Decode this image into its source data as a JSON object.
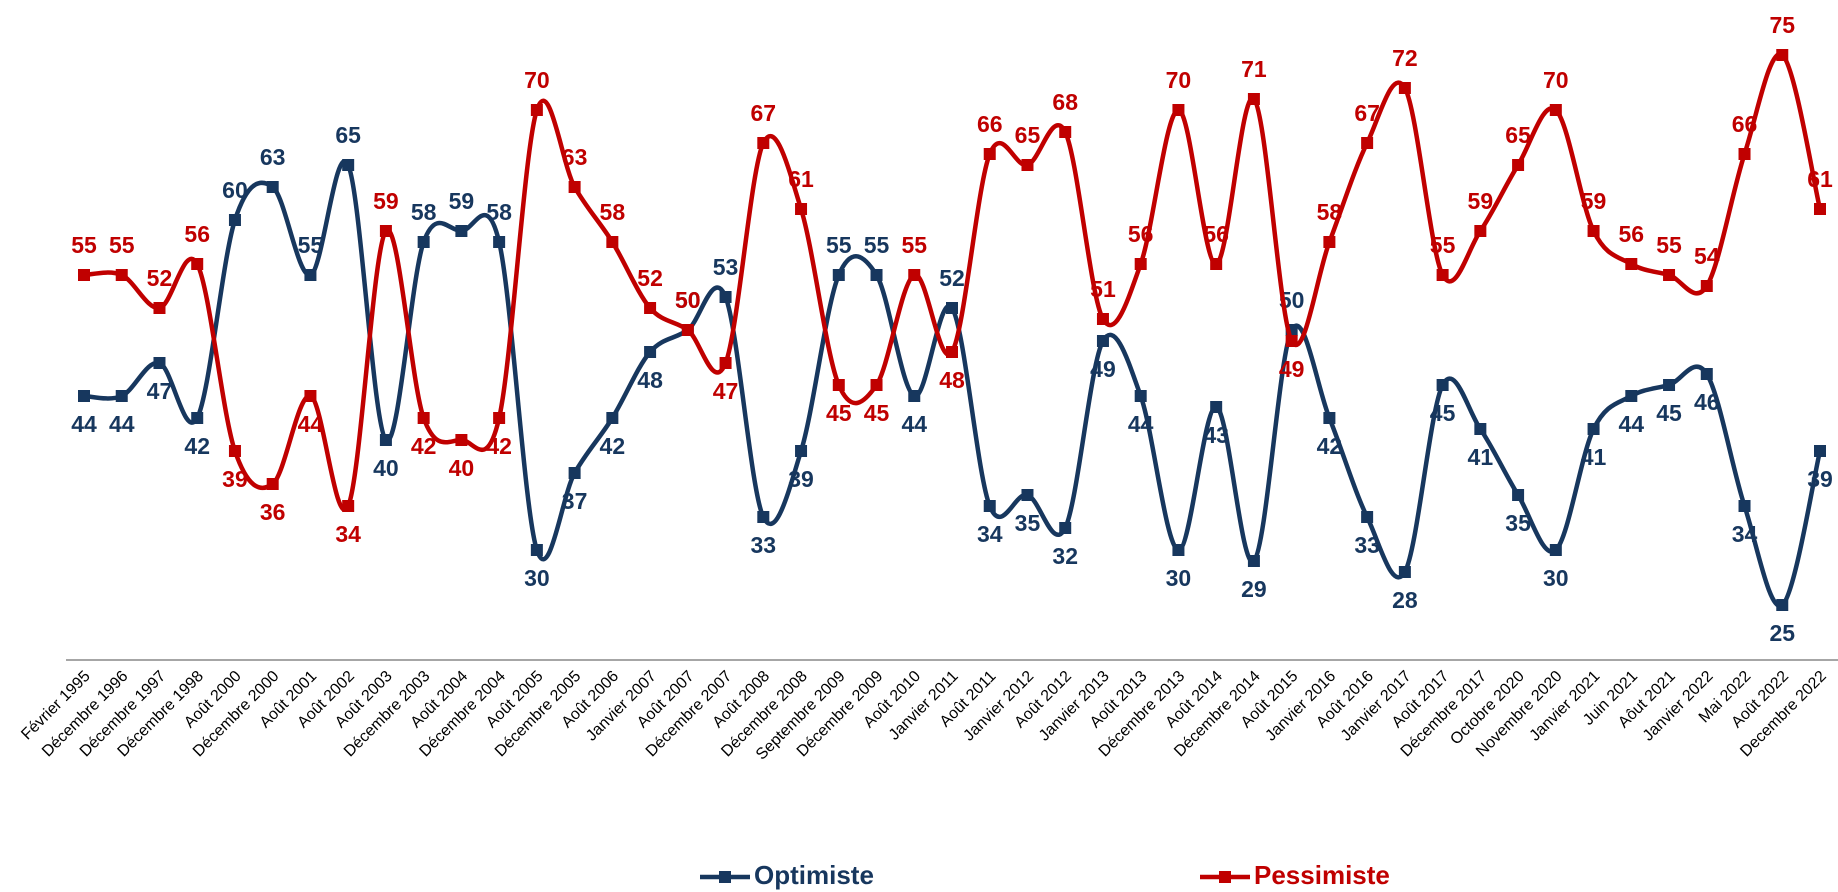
{
  "chart_data": {
    "type": "line",
    "categories": [
      "Février 1995",
      "Décembre 1996",
      "Décembre 1997",
      "Décembre 1998",
      "Août 2000",
      "Décembre 2000",
      "Août 2001",
      "Août 2002",
      "Août 2003",
      "Décembre 2003",
      "Août 2004",
      "Décembre 2004",
      "Août 2005",
      "Décembre 2005",
      "Août 2006",
      "Janvier 2007",
      "Août 2007",
      "Décembre 2007",
      "Août 2008",
      "Décembre 2008",
      "Septembre 2009",
      "Décembre 2009",
      "Août 2010",
      "Janvier 2011",
      "Août 2011",
      "Janvier 2012",
      "Août 2012",
      "Janvier 2013",
      "Août 2013",
      "Décembre 2013",
      "Août 2014",
      "Décembre 2014",
      "Août 2015",
      "Janvier 2016",
      "Août 2016",
      "Janvier 2017",
      "Août 2017",
      "Décembre 2017",
      "Octobre 2020",
      "Novembre 2020",
      "Janvier 2021",
      "Juin 2021",
      "Aôut 2021",
      "Janvier 2022",
      "Mai 2022",
      "Août 2022",
      "Decembre 2022"
    ],
    "series": [
      {
        "name": "Optimiste",
        "color": "#17375e",
        "values": [
          44,
          44,
          47,
          42,
          60,
          63,
          55,
          65,
          40,
          58,
          59,
          58,
          30,
          37,
          42,
          48,
          50,
          53,
          33,
          39,
          55,
          55,
          44,
          52,
          34,
          35,
          32,
          49,
          44,
          30,
          43,
          29,
          50,
          42,
          33,
          28,
          45,
          41,
          35,
          30,
          41,
          44,
          45,
          46,
          34,
          25,
          39
        ]
      },
      {
        "name": "Pessimiste",
        "color": "#c00000",
        "values": [
          55,
          55,
          52,
          56,
          39,
          36,
          44,
          34,
          59,
          42,
          40,
          42,
          70,
          63,
          58,
          52,
          50,
          47,
          67,
          61,
          45,
          45,
          55,
          48,
          66,
          65,
          68,
          51,
          56,
          70,
          56,
          71,
          49,
          58,
          67,
          72,
          55,
          59,
          65,
          70,
          59,
          56,
          55,
          54,
          66,
          75,
          61
        ]
      }
    ],
    "ylim": [
      20,
      80
    ],
    "legend": "bottom"
  }
}
